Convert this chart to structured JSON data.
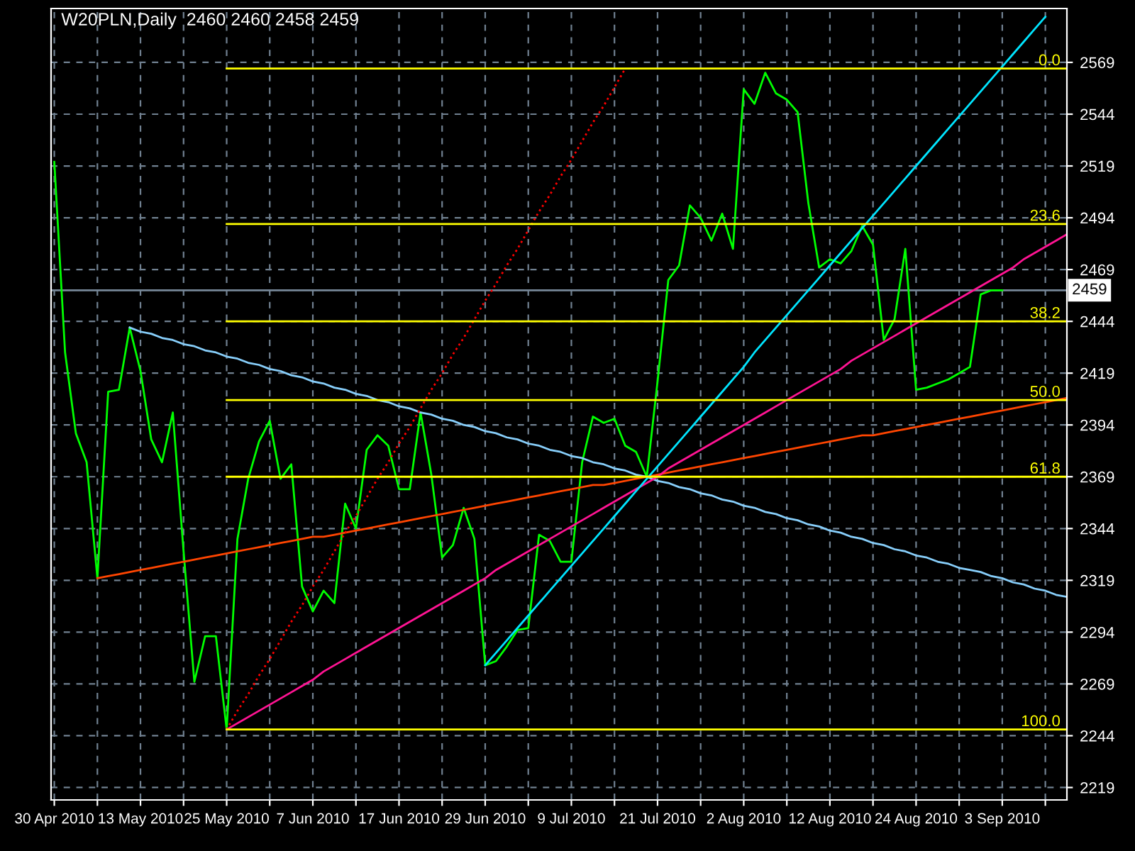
{
  "chart_data": {
    "type": "line",
    "title": "W20PLN,Daily  2460 2460 2458 2459",
    "categories": [
      "30 Apr 2010",
      null,
      null,
      null,
      null,
      null,
      null,
      null,
      "13 May 2010",
      null,
      null,
      null,
      null,
      null,
      null,
      null,
      "25 May 2010",
      null,
      null,
      null,
      null,
      null,
      null,
      null,
      "7 Jun 2010",
      null,
      null,
      null,
      null,
      null,
      null,
      null,
      "17 Jun 2010",
      null,
      null,
      null,
      null,
      null,
      null,
      null,
      "29 Jun 2010",
      null,
      null,
      null,
      null,
      null,
      null,
      null,
      "9 Jul 2010",
      null,
      null,
      null,
      null,
      null,
      null,
      null,
      "21 Jul 2010",
      null,
      null,
      null,
      null,
      null,
      null,
      null,
      "2 Aug 2010",
      null,
      null,
      null,
      null,
      null,
      null,
      null,
      "12 Aug 2010",
      null,
      null,
      null,
      null,
      null,
      null,
      null,
      "24 Aug 2010",
      null,
      null,
      null,
      null,
      null,
      null,
      null,
      "3 Sep 2010",
      null,
      null,
      null,
      null,
      null,
      null
    ],
    "series": [
      {
        "color": "#00ff00",
        "values": [
          2521,
          2429,
          2390,
          2376,
          2320,
          2410,
          2411,
          2441,
          2420,
          2387,
          2376,
          2400,
          2333,
          2270,
          2292,
          2292,
          2247,
          2339,
          2368,
          2386,
          2396,
          2368,
          2375,
          2316,
          2304,
          2314,
          2308,
          2356,
          2344,
          2382,
          2389,
          2384,
          2363,
          2363,
          2400,
          2370,
          2330,
          2336,
          2354,
          2339,
          2278,
          2280,
          2287,
          2295,
          2296,
          2341,
          2338,
          2328,
          2328,
          2376,
          2398,
          2395,
          2397,
          2384,
          2381,
          2369,
          2415,
          2464,
          2471,
          2500,
          2494,
          2483,
          2496,
          2479,
          2556,
          2549,
          2564,
          2554,
          2551,
          2545,
          2501,
          2470,
          2474,
          2472,
          2478,
          2490,
          2481,
          2435,
          2445,
          2479,
          2411,
          2412,
          2414,
          2416,
          2419,
          2422,
          2457,
          2459,
          2459,
          null,
          null,
          null,
          null,
          null,
          null
        ]
      },
      {
        "color": "#87cefa",
        "values": [
          null,
          null,
          null,
          null,
          null,
          null,
          null,
          2441,
          2439,
          2438,
          2436,
          2435,
          2433,
          2432,
          2430,
          2429,
          2427,
          2426,
          2424,
          2423,
          2421,
          2420,
          2418,
          2417,
          2415,
          2414,
          2412,
          2411,
          2409,
          2408,
          2406,
          2405,
          2403,
          2402,
          2400,
          2399,
          2397,
          2396,
          2394,
          2393,
          2391,
          2390,
          2388,
          2387,
          2385,
          2384,
          2382,
          2381,
          2379,
          2378,
          2376,
          2375,
          2373,
          2372,
          2370,
          2369,
          2367,
          2366,
          2364,
          2363,
          2361,
          2360,
          2358,
          2357,
          2355,
          2354,
          2352,
          2351,
          2349,
          2348,
          2346,
          2345,
          2343,
          2342,
          2340,
          2339,
          2337,
          2336,
          2334,
          2333,
          2331,
          2330,
          2328,
          2327,
          2325,
          2324,
          2323,
          2321,
          2320,
          2318,
          2317,
          2315,
          2314,
          2312,
          2311
        ]
      },
      {
        "color": "#ff4500",
        "values": [
          null,
          null,
          null,
          null,
          2320,
          2321,
          2322,
          2323,
          2324,
          2325,
          2326,
          2327,
          2328,
          2329,
          2330,
          2331,
          2332,
          2333,
          2334,
          2335,
          2336,
          2337,
          2338,
          2339,
          2340,
          2340,
          2341,
          2342,
          2343,
          2344,
          2345,
          2346,
          2347,
          2348,
          2349,
          2350,
          2351,
          2352,
          2353,
          2354,
          2355,
          2356,
          2357,
          2358,
          2359,
          2360,
          2361,
          2362,
          2363,
          2364,
          2365,
          2365,
          2366,
          2367,
          2368,
          2369,
          2370,
          2371,
          2372,
          2373,
          2374,
          2375,
          2376,
          2377,
          2378,
          2379,
          2380,
          2381,
          2382,
          2383,
          2384,
          2385,
          2386,
          2387,
          2388,
          2389,
          2389,
          2390,
          2391,
          2392,
          2393,
          2394,
          2395,
          2396,
          2397,
          2398,
          2399,
          2400,
          2401,
          2402,
          2403,
          2404,
          2405,
          2406,
          2407
        ]
      },
      {
        "color": "#ff1493",
        "values": [
          null,
          null,
          null,
          null,
          null,
          null,
          null,
          null,
          null,
          null,
          null,
          null,
          null,
          null,
          null,
          null,
          2247,
          2250,
          2253,
          2256,
          2259,
          2262,
          2265,
          2268,
          2271,
          2275,
          2278,
          2281,
          2284,
          2287,
          2290,
          2293,
          2296,
          2299,
          2302,
          2305,
          2308,
          2311,
          2314,
          2317,
          2320,
          2324,
          2327,
          2330,
          2333,
          2336,
          2339,
          2342,
          2345,
          2348,
          2351,
          2354,
          2357,
          2360,
          2363,
          2366,
          2369,
          2373,
          2376,
          2379,
          2382,
          2385,
          2388,
          2391,
          2394,
          2397,
          2400,
          2403,
          2406,
          2409,
          2412,
          2415,
          2418,
          2421,
          2425,
          2428,
          2431,
          2434,
          2437,
          2440,
          2443,
          2446,
          2449,
          2452,
          2455,
          2458,
          2461,
          2464,
          2467,
          2470,
          2474,
          2477,
          2480,
          2483,
          2486
        ]
      },
      {
        "color": "#00e5ff",
        "values": [
          null,
          null,
          null,
          null,
          null,
          null,
          null,
          null,
          null,
          null,
          null,
          null,
          null,
          null,
          null,
          null,
          null,
          null,
          null,
          null,
          null,
          null,
          null,
          null,
          null,
          null,
          null,
          null,
          null,
          null,
          null,
          null,
          null,
          null,
          null,
          null,
          null,
          null,
          null,
          null,
          2278,
          2284,
          2290,
          2296,
          2302,
          2308,
          2314,
          2320,
          2326,
          2332,
          2338,
          2344,
          2350,
          2356,
          2362,
          2368,
          2374,
          2380,
          2386,
          2392,
          2398,
          2404,
          2410,
          2416,
          2422,
          2429,
          2435,
          2441,
          2447,
          2453,
          2459,
          2465,
          2471,
          2477,
          2483,
          2489,
          2495,
          2501,
          2507,
          2513,
          2519,
          2525,
          2531,
          2537,
          2543,
          2549,
          2555,
          2561,
          2567,
          2573,
          2579,
          2585,
          2591,
          null,
          null
        ]
      },
      {
        "color": "#ff0000",
        "line_style": "dotted",
        "values": [
          null,
          null,
          null,
          null,
          null,
          null,
          null,
          null,
          null,
          null,
          null,
          null,
          null,
          null,
          null,
          null,
          2247,
          2256,
          2264,
          2273,
          2281,
          2290,
          2299,
          2307,
          2316,
          2324,
          2333,
          2342,
          2350,
          2359,
          2368,
          2376,
          2385,
          2393,
          2402,
          2411,
          2419,
          2428,
          2436,
          2445,
          2454,
          2462,
          2471,
          2479,
          2488,
          2497,
          2505,
          2514,
          2522,
          2531,
          2540,
          2548,
          2557,
          2566,
          null,
          null,
          null,
          null,
          null,
          null,
          null,
          null,
          null,
          null,
          null,
          null,
          null,
          null,
          null,
          null,
          null,
          null,
          null,
          null,
          null,
          null,
          null,
          null,
          null,
          null,
          null,
          null,
          null,
          null,
          null,
          null,
          null,
          null,
          null,
          null,
          null,
          null,
          null,
          null,
          null
        ]
      },
      {
        "name": "0.0",
        "color": "#ffff00",
        "values": [
          null,
          null,
          null,
          null,
          null,
          null,
          null,
          null,
          null,
          null,
          null,
          null,
          null,
          null,
          null,
          null,
          2566,
          2566,
          2566,
          2566,
          2566,
          2566,
          2566,
          2566,
          2566,
          2566,
          2566,
          2566,
          2566,
          2566,
          2566,
          2566,
          2566,
          2566,
          2566,
          2566,
          2566,
          2566,
          2566,
          2566,
          2566,
          2566,
          2566,
          2566,
          2566,
          2566,
          2566,
          2566,
          2566,
          2566,
          2566,
          2566,
          2566,
          2566,
          2566,
          2566,
          2566,
          2566,
          2566,
          2566,
          2566,
          2566,
          2566,
          2566,
          2566,
          2566,
          2566,
          2566,
          2566,
          2566,
          2566,
          2566,
          2566,
          2566,
          2566,
          2566,
          2566,
          2566,
          2566,
          2566,
          2566,
          2566,
          2566,
          2566,
          2566,
          2566,
          2566,
          2566,
          2566,
          2566,
          2566,
          2566,
          2566,
          2566,
          2566
        ]
      },
      {
        "name": "23.6",
        "color": "#ffff00",
        "values": [
          null,
          null,
          null,
          null,
          null,
          null,
          null,
          null,
          null,
          null,
          null,
          null,
          null,
          null,
          null,
          null,
          2491,
          2491,
          2491,
          2491,
          2491,
          2491,
          2491,
          2491,
          2491,
          2491,
          2491,
          2491,
          2491,
          2491,
          2491,
          2491,
          2491,
          2491,
          2491,
          2491,
          2491,
          2491,
          2491,
          2491,
          2491,
          2491,
          2491,
          2491,
          2491,
          2491,
          2491,
          2491,
          2491,
          2491,
          2491,
          2491,
          2491,
          2491,
          2491,
          2491,
          2491,
          2491,
          2491,
          2491,
          2491,
          2491,
          2491,
          2491,
          2491,
          2491,
          2491,
          2491,
          2491,
          2491,
          2491,
          2491,
          2491,
          2491,
          2491,
          2491,
          2491,
          2491,
          2491,
          2491,
          2491,
          2491,
          2491,
          2491,
          2491,
          2491,
          2491,
          2491,
          2491,
          2491,
          2491,
          2491,
          2491,
          2491,
          2491
        ]
      },
      {
        "name": "38.2",
        "color": "#ffff00",
        "values": [
          null,
          null,
          null,
          null,
          null,
          null,
          null,
          null,
          null,
          null,
          null,
          null,
          null,
          null,
          null,
          null,
          2444,
          2444,
          2444,
          2444,
          2444,
          2444,
          2444,
          2444,
          2444,
          2444,
          2444,
          2444,
          2444,
          2444,
          2444,
          2444,
          2444,
          2444,
          2444,
          2444,
          2444,
          2444,
          2444,
          2444,
          2444,
          2444,
          2444,
          2444,
          2444,
          2444,
          2444,
          2444,
          2444,
          2444,
          2444,
          2444,
          2444,
          2444,
          2444,
          2444,
          2444,
          2444,
          2444,
          2444,
          2444,
          2444,
          2444,
          2444,
          2444,
          2444,
          2444,
          2444,
          2444,
          2444,
          2444,
          2444,
          2444,
          2444,
          2444,
          2444,
          2444,
          2444,
          2444,
          2444,
          2444,
          2444,
          2444,
          2444,
          2444,
          2444,
          2444,
          2444,
          2444,
          2444,
          2444,
          2444,
          2444,
          2444,
          2444
        ]
      },
      {
        "name": "50.0",
        "color": "#ffff00",
        "values": [
          null,
          null,
          null,
          null,
          null,
          null,
          null,
          null,
          null,
          null,
          null,
          null,
          null,
          null,
          null,
          null,
          2406,
          2406,
          2406,
          2406,
          2406,
          2406,
          2406,
          2406,
          2406,
          2406,
          2406,
          2406,
          2406,
          2406,
          2406,
          2406,
          2406,
          2406,
          2406,
          2406,
          2406,
          2406,
          2406,
          2406,
          2406,
          2406,
          2406,
          2406,
          2406,
          2406,
          2406,
          2406,
          2406,
          2406,
          2406,
          2406,
          2406,
          2406,
          2406,
          2406,
          2406,
          2406,
          2406,
          2406,
          2406,
          2406,
          2406,
          2406,
          2406,
          2406,
          2406,
          2406,
          2406,
          2406,
          2406,
          2406,
          2406,
          2406,
          2406,
          2406,
          2406,
          2406,
          2406,
          2406,
          2406,
          2406,
          2406,
          2406,
          2406,
          2406,
          2406,
          2406,
          2406,
          2406,
          2406,
          2406,
          2406,
          2406,
          2406
        ]
      },
      {
        "name": "61.8",
        "color": "#ffff00",
        "values": [
          null,
          null,
          null,
          null,
          null,
          null,
          null,
          null,
          null,
          null,
          null,
          null,
          null,
          null,
          null,
          null,
          2369,
          2369,
          2369,
          2369,
          2369,
          2369,
          2369,
          2369,
          2369,
          2369,
          2369,
          2369,
          2369,
          2369,
          2369,
          2369,
          2369,
          2369,
          2369,
          2369,
          2369,
          2369,
          2369,
          2369,
          2369,
          2369,
          2369,
          2369,
          2369,
          2369,
          2369,
          2369,
          2369,
          2369,
          2369,
          2369,
          2369,
          2369,
          2369,
          2369,
          2369,
          2369,
          2369,
          2369,
          2369,
          2369,
          2369,
          2369,
          2369,
          2369,
          2369,
          2369,
          2369,
          2369,
          2369,
          2369,
          2369,
          2369,
          2369,
          2369,
          2369,
          2369,
          2369,
          2369,
          2369,
          2369,
          2369,
          2369,
          2369,
          2369,
          2369,
          2369,
          2369,
          2369,
          2369,
          2369,
          2369,
          2369,
          2369
        ]
      },
      {
        "name": "100.0",
        "color": "#ffff00",
        "values": [
          null,
          null,
          null,
          null,
          null,
          null,
          null,
          null,
          null,
          null,
          null,
          null,
          null,
          null,
          null,
          null,
          2247,
          2247,
          2247,
          2247,
          2247,
          2247,
          2247,
          2247,
          2247,
          2247,
          2247,
          2247,
          2247,
          2247,
          2247,
          2247,
          2247,
          2247,
          2247,
          2247,
          2247,
          2247,
          2247,
          2247,
          2247,
          2247,
          2247,
          2247,
          2247,
          2247,
          2247,
          2247,
          2247,
          2247,
          2247,
          2247,
          2247,
          2247,
          2247,
          2247,
          2247,
          2247,
          2247,
          2247,
          2247,
          2247,
          2247,
          2247,
          2247,
          2247,
          2247,
          2247,
          2247,
          2247,
          2247,
          2247,
          2247,
          2247,
          2247,
          2247,
          2247,
          2247,
          2247,
          2247,
          2247,
          2247,
          2247,
          2247,
          2247,
          2247,
          2247,
          2247,
          2247,
          2247,
          2247,
          2247,
          2247,
          2247,
          2247
        ]
      }
    ],
    "ref_lines": [
      {
        "axis": "y",
        "value": 2459,
        "label": "2459",
        "color": "#778899"
      }
    ],
    "ylim": [
      2213,
      2595
    ],
    "yticks": [
      2219,
      2244,
      2269,
      2294,
      2319,
      2344,
      2369,
      2394,
      2419,
      2444,
      2469,
      2494,
      2519,
      2544,
      2569
    ],
    "grid": true,
    "legend": false,
    "marker": "none",
    "line_style": "solid"
  }
}
